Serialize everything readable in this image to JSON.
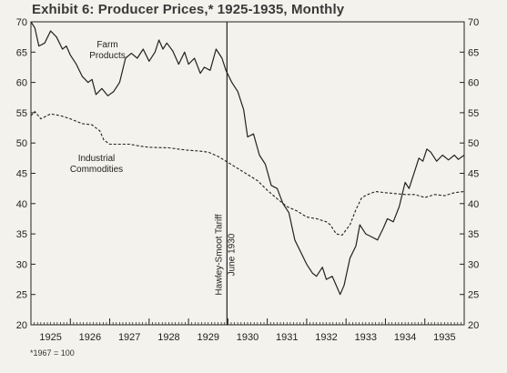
{
  "title": "Exhibit 6: Producer Prices,* 1925-1935, Monthly",
  "footnote": "*1967 = 100",
  "chart_data": {
    "type": "line",
    "title": "Exhibit 6: Producer Prices,* 1925-1935, Monthly",
    "xlabel": "",
    "ylabel": "",
    "xlim": [
      1925,
      1936
    ],
    "ylim": [
      20,
      70
    ],
    "y_ticks": [
      20,
      25,
      30,
      35,
      40,
      45,
      50,
      55,
      60,
      65,
      70
    ],
    "x_ticks": [
      "1925",
      "1926",
      "1927",
      "1928",
      "1929",
      "1930",
      "1931",
      "1932",
      "1933",
      "1934",
      "1935"
    ],
    "grid": false,
    "series": [
      {
        "name": "Farm Products",
        "style": "solid",
        "color": "#222222",
        "label_lines": [
          "Farm",
          "Products"
        ],
        "points": [
          [
            1925.0,
            70.0
          ],
          [
            1925.1,
            69.0
          ],
          [
            1925.2,
            66.0
          ],
          [
            1925.35,
            66.5
          ],
          [
            1925.5,
            68.5
          ],
          [
            1925.65,
            67.5
          ],
          [
            1925.8,
            65.5
          ],
          [
            1925.9,
            66.0
          ],
          [
            1926.0,
            64.5
          ],
          [
            1926.15,
            63.0
          ],
          [
            1926.3,
            61.0
          ],
          [
            1926.45,
            60.0
          ],
          [
            1926.55,
            60.5
          ],
          [
            1926.65,
            58.0
          ],
          [
            1926.8,
            59.0
          ],
          [
            1926.95,
            57.8
          ],
          [
            1927.1,
            58.5
          ],
          [
            1927.25,
            60.0
          ],
          [
            1927.4,
            64.0
          ],
          [
            1927.55,
            64.8
          ],
          [
            1927.7,
            64.0
          ],
          [
            1927.85,
            65.5
          ],
          [
            1928.0,
            63.5
          ],
          [
            1928.15,
            65.0
          ],
          [
            1928.25,
            67.0
          ],
          [
            1928.35,
            65.5
          ],
          [
            1928.45,
            66.5
          ],
          [
            1928.6,
            65.2
          ],
          [
            1928.75,
            63.0
          ],
          [
            1928.9,
            65.0
          ],
          [
            1929.0,
            63.0
          ],
          [
            1929.15,
            64.0
          ],
          [
            1929.3,
            61.5
          ],
          [
            1929.4,
            62.5
          ],
          [
            1929.55,
            62.0
          ],
          [
            1929.7,
            65.5
          ],
          [
            1929.85,
            64.0
          ],
          [
            1929.95,
            62.0
          ],
          [
            1930.1,
            60.0
          ],
          [
            1930.25,
            58.5
          ],
          [
            1930.4,
            55.5
          ],
          [
            1930.5,
            51.0
          ],
          [
            1930.65,
            51.5
          ],
          [
            1930.8,
            48.0
          ],
          [
            1930.95,
            46.5
          ],
          [
            1931.1,
            43.0
          ],
          [
            1931.25,
            42.5
          ],
          [
            1931.4,
            40.0
          ],
          [
            1931.55,
            38.5
          ],
          [
            1931.7,
            34.0
          ],
          [
            1931.85,
            32.0
          ],
          [
            1932.0,
            30.0
          ],
          [
            1932.15,
            28.5
          ],
          [
            1932.25,
            28.0
          ],
          [
            1932.4,
            29.5
          ],
          [
            1932.5,
            27.5
          ],
          [
            1932.65,
            28.0
          ],
          [
            1932.75,
            26.5
          ],
          [
            1932.85,
            25.0
          ],
          [
            1932.95,
            26.5
          ],
          [
            1933.1,
            31.0
          ],
          [
            1933.25,
            33.0
          ],
          [
            1933.35,
            36.5
          ],
          [
            1933.5,
            35.0
          ],
          [
            1933.65,
            34.5
          ],
          [
            1933.8,
            34.0
          ],
          [
            1933.95,
            36.0
          ],
          [
            1934.05,
            37.5
          ],
          [
            1934.2,
            37.0
          ],
          [
            1934.35,
            39.5
          ],
          [
            1934.5,
            43.5
          ],
          [
            1934.6,
            42.5
          ],
          [
            1934.75,
            45.5
          ],
          [
            1934.85,
            47.5
          ],
          [
            1934.95,
            47.0
          ],
          [
            1935.05,
            49.0
          ],
          [
            1935.15,
            48.5
          ],
          [
            1935.3,
            47.0
          ],
          [
            1935.45,
            48.0
          ],
          [
            1935.6,
            47.2
          ],
          [
            1935.75,
            48.0
          ],
          [
            1935.85,
            47.3
          ],
          [
            1936.0,
            48.0
          ]
        ]
      },
      {
        "name": "Industrial Commodities",
        "style": "dashed",
        "color": "#222222",
        "label_lines": [
          "Industrial",
          "Commodities"
        ],
        "points": [
          [
            1925.0,
            54.5
          ],
          [
            1925.1,
            55.2
          ],
          [
            1925.25,
            54.0
          ],
          [
            1925.5,
            54.8
          ],
          [
            1925.75,
            54.5
          ],
          [
            1926.0,
            54.0
          ],
          [
            1926.3,
            53.2
          ],
          [
            1926.55,
            53.0
          ],
          [
            1926.75,
            52.0
          ],
          [
            1926.85,
            50.5
          ],
          [
            1927.0,
            49.8
          ],
          [
            1927.5,
            49.8
          ],
          [
            1927.75,
            49.5
          ],
          [
            1928.0,
            49.3
          ],
          [
            1928.5,
            49.2
          ],
          [
            1928.75,
            49.0
          ],
          [
            1929.0,
            48.8
          ],
          [
            1929.25,
            48.7
          ],
          [
            1929.5,
            48.5
          ],
          [
            1929.75,
            47.8
          ],
          [
            1930.0,
            46.8
          ],
          [
            1930.25,
            45.8
          ],
          [
            1930.5,
            44.8
          ],
          [
            1930.75,
            43.8
          ],
          [
            1931.0,
            42.2
          ],
          [
            1931.25,
            40.8
          ],
          [
            1931.5,
            39.5
          ],
          [
            1931.75,
            38.8
          ],
          [
            1932.0,
            37.8
          ],
          [
            1932.25,
            37.5
          ],
          [
            1932.5,
            37.0
          ],
          [
            1932.6,
            36.5
          ],
          [
            1932.75,
            35.0
          ],
          [
            1932.9,
            34.8
          ],
          [
            1933.1,
            36.5
          ],
          [
            1933.25,
            39.0
          ],
          [
            1933.4,
            41.0
          ],
          [
            1933.55,
            41.5
          ],
          [
            1933.75,
            42.0
          ],
          [
            1934.0,
            41.8
          ],
          [
            1934.5,
            41.5
          ],
          [
            1934.75,
            41.5
          ],
          [
            1935.0,
            41.0
          ],
          [
            1935.25,
            41.5
          ],
          [
            1935.5,
            41.3
          ],
          [
            1935.75,
            41.8
          ],
          [
            1936.0,
            42.0
          ]
        ]
      }
    ],
    "annotation": {
      "x": 1930.0,
      "label_lines": [
        "Hawley-Smoot Tariff",
        "June 1930"
      ]
    }
  }
}
